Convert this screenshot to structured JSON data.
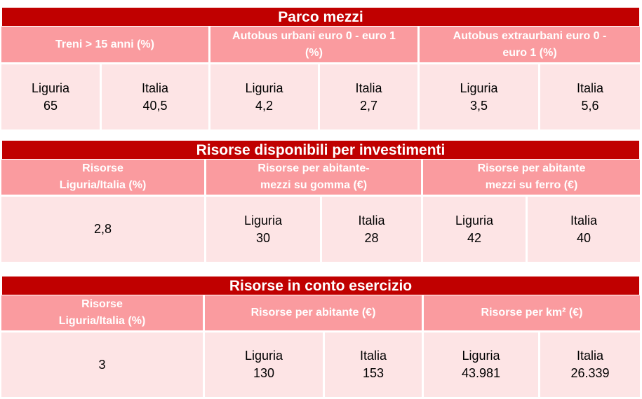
{
  "parco": {
    "title": "Parco mezzi",
    "headers": [
      "Treni > 15 anni (%)",
      "Autobus urbani euro 0 - euro 1\n(%)",
      "Autobus extraurbani euro 0 -\neuro 1 (%)"
    ],
    "cells": [
      {
        "region": "Liguria",
        "value": "65"
      },
      {
        "region": "Italia",
        "value": "40,5"
      },
      {
        "region": "Liguria",
        "value": "4,2"
      },
      {
        "region": "Italia",
        "value": "2,7"
      },
      {
        "region": "Liguria",
        "value": "3,5"
      },
      {
        "region": "Italia",
        "value": "5,6"
      }
    ]
  },
  "investimenti": {
    "title": "Risorse disponibili per investimenti",
    "headers": [
      "Risorse\nLiguria/Italia (%)",
      "Risorse per abitante-\nmezzi su gomma (€)",
      "Risorse per abitante\nmezzi su ferro (€)"
    ],
    "single_value": "2,8",
    "cells": [
      {
        "region": "Liguria",
        "value": "30"
      },
      {
        "region": "Italia",
        "value": "28"
      },
      {
        "region": "Liguria",
        "value": "42"
      },
      {
        "region": "Italia",
        "value": "40"
      }
    ]
  },
  "esercizio": {
    "title": "Risorse in conto esercizio",
    "headers": [
      "Risorse\nLiguria/Italia (%)",
      "Risorse per abitante (€)",
      "Risorse per km² (€)"
    ],
    "single_value": "3",
    "cells": [
      {
        "region": "Liguria",
        "value": "130"
      },
      {
        "region": "Italia",
        "value": "153"
      },
      {
        "region": "Liguria",
        "value": "43.981"
      },
      {
        "region": "Italia",
        "value": "26.339"
      }
    ]
  }
}
